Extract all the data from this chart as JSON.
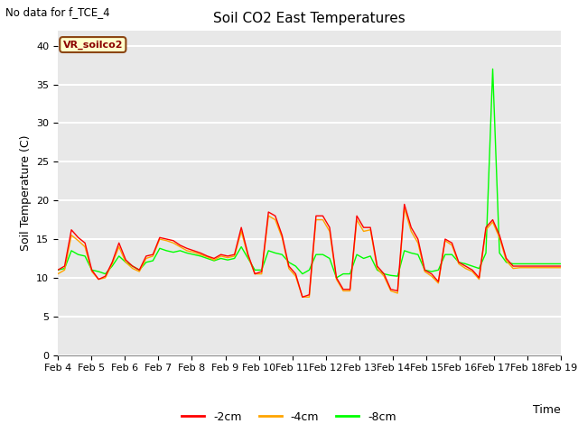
{
  "title": "Soil CO2 East Temperatures",
  "no_data_text": "No data for f_TCE_4",
  "xlabel": "Time",
  "ylabel": "Soil Temperature (C)",
  "ylim": [
    0,
    42
  ],
  "yticks": [
    0,
    5,
    10,
    15,
    20,
    25,
    30,
    35,
    40
  ],
  "xlim": [
    0,
    15
  ],
  "xtick_labels": [
    "Feb 4",
    "Feb 5",
    "Feb 6",
    "Feb 7",
    "Feb 8",
    "Feb 9",
    "Feb 10",
    "Feb 11",
    "Feb 12",
    "Feb 13",
    "Feb 14",
    "Feb 15",
    "Feb 16",
    "Feb 17",
    "Feb 18",
    "Feb 19"
  ],
  "bg_color": "#e8e8e8",
  "grid_color": "#ffffff",
  "line_colors": {
    "m2cm": "#ff0000",
    "m4cm": "#ffa500",
    "m8cm": "#00ff00"
  },
  "legend_labels": [
    "-2cm",
    "-4cm",
    "-8cm"
  ],
  "annotation_box": "VR_soilco2",
  "annotation_box_color": "#ffffcc",
  "annotation_box_border": "#8b4513",
  "annotation_text_color": "#8b0000",
  "title_fontsize": 11,
  "label_fontsize": 9,
  "tick_fontsize": 8,
  "spike_y": 37.0,
  "t_2cm": [
    11.0,
    11.5,
    16.2,
    15.2,
    14.5,
    11.0,
    9.8,
    10.2,
    12.0,
    14.5,
    12.3,
    11.5,
    11.0,
    12.8,
    13.0,
    15.2,
    15.0,
    14.8,
    14.2,
    13.8,
    13.5,
    13.2,
    12.8,
    12.5,
    13.0,
    12.8,
    13.0,
    16.5,
    13.0,
    10.5,
    10.8,
    18.5,
    18.0,
    15.5,
    11.5,
    10.5,
    7.5,
    7.8,
    18.0,
    18.0,
    16.5,
    10.0,
    8.5,
    8.5,
    18.0,
    16.5,
    16.5,
    11.5,
    10.5,
    8.5,
    8.3,
    19.5,
    16.5,
    15.0,
    11.0,
    10.5,
    9.5,
    15.0,
    14.5,
    12.0,
    11.5,
    11.0,
    10.0,
    16.5,
    17.5,
    15.5,
    12.5,
    11.5,
    11.5,
    11.5,
    11.5,
    11.5,
    11.5,
    11.5,
    11.5
  ],
  "t_4cm": [
    10.5,
    11.0,
    15.5,
    14.8,
    14.0,
    10.8,
    9.8,
    10.0,
    11.8,
    14.0,
    12.0,
    11.2,
    10.8,
    12.5,
    12.8,
    15.0,
    14.8,
    14.5,
    14.0,
    13.5,
    13.3,
    13.0,
    12.7,
    12.3,
    12.8,
    12.6,
    12.8,
    16.0,
    12.8,
    10.5,
    10.5,
    18.0,
    17.5,
    15.2,
    11.2,
    10.2,
    7.5,
    7.5,
    17.5,
    17.5,
    16.0,
    9.8,
    8.3,
    8.3,
    17.5,
    16.0,
    16.2,
    11.2,
    10.2,
    8.3,
    8.0,
    19.0,
    16.0,
    14.5,
    10.8,
    10.2,
    9.3,
    14.8,
    14.2,
    11.8,
    11.2,
    10.8,
    9.8,
    16.2,
    17.2,
    15.2,
    12.2,
    11.2,
    11.3,
    11.3,
    11.3,
    11.3,
    11.3,
    11.3,
    11.3
  ],
  "t_8cm": [
    11.0,
    11.2,
    13.5,
    13.0,
    12.8,
    11.0,
    10.8,
    10.5,
    11.5,
    12.8,
    12.0,
    11.5,
    11.0,
    12.0,
    12.2,
    13.8,
    13.5,
    13.3,
    13.5,
    13.2,
    13.0,
    12.8,
    12.5,
    12.2,
    12.5,
    12.3,
    12.5,
    14.0,
    12.5,
    11.0,
    11.0,
    13.5,
    13.2,
    13.0,
    12.0,
    11.5,
    10.5,
    11.0,
    13.0,
    13.0,
    12.5,
    10.0,
    10.5,
    10.5,
    13.0,
    12.5,
    12.8,
    11.0,
    10.5,
    10.3,
    10.2,
    13.5,
    13.2,
    13.0,
    11.0,
    10.8,
    11.0,
    13.0,
    13.0,
    12.0,
    11.8,
    11.5,
    11.2,
    13.2,
    37.0,
    13.2,
    12.0,
    11.8,
    11.8,
    11.8,
    11.8,
    11.8,
    11.8,
    11.8,
    11.8
  ]
}
